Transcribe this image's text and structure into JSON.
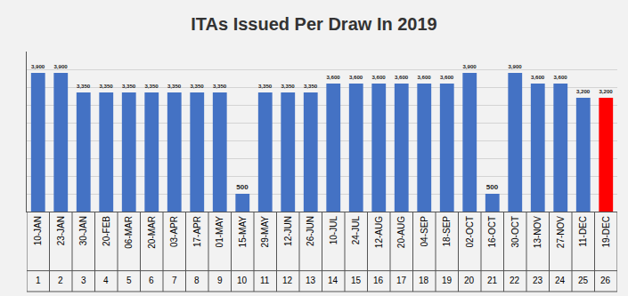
{
  "chart_data": {
    "type": "bar",
    "title": "ITAs Issued Per Draw In 2019",
    "categories": [
      "10-JAN",
      "23-JAN",
      "30-JAN",
      "20-FEB",
      "06-MAR",
      "20-MAR",
      "03-APR",
      "17-APR",
      "01-MAY",
      "15-MAY",
      "29-MAY",
      "12-JUN",
      "26-JUN",
      "10-JUL",
      "24-JUL",
      "12-AUG",
      "20-AUG",
      "04-SEP",
      "18-SEP",
      "02-OCT",
      "16-OCT",
      "30-OCT",
      "13-NOV",
      "27-NOV",
      "11-DEC",
      "19-DEC"
    ],
    "draw_numbers": [
      1,
      2,
      3,
      4,
      5,
      6,
      7,
      8,
      9,
      10,
      11,
      12,
      13,
      14,
      15,
      16,
      17,
      18,
      19,
      20,
      21,
      22,
      23,
      24,
      25,
      26
    ],
    "values": [
      3900,
      3900,
      3350,
      3350,
      3350,
      3350,
      3350,
      3350,
      3350,
      500,
      3350,
      3350,
      3350,
      3600,
      3600,
      3600,
      3600,
      3600,
      3600,
      3900,
      500,
      3900,
      3600,
      3600,
      3200,
      3200
    ],
    "value_labels": [
      "3,900",
      "3,900",
      "3,350",
      "3,350",
      "3,350",
      "3,350",
      "3,350",
      "3,350",
      "3,350",
      "500",
      "3,350",
      "3,350",
      "3,350",
      "3,600",
      "3,600",
      "3,600",
      "3,600",
      "3,600",
      "3,600",
      "3,900",
      "500",
      "3,900",
      "3,600",
      "3,600",
      "3,200",
      "3,200"
    ],
    "colors": [
      "#4472c4",
      "#4472c4",
      "#4472c4",
      "#4472c4",
      "#4472c4",
      "#4472c4",
      "#4472c4",
      "#4472c4",
      "#4472c4",
      "#4472c4",
      "#4472c4",
      "#4472c4",
      "#4472c4",
      "#4472c4",
      "#4472c4",
      "#4472c4",
      "#4472c4",
      "#4472c4",
      "#4472c4",
      "#4472c4",
      "#4472c4",
      "#4472c4",
      "#4472c4",
      "#4472c4",
      "#4472c4",
      "#ff0000"
    ],
    "ylim": [
      0,
      4500
    ],
    "yticks": [
      0,
      500,
      1000,
      1500,
      2000,
      2500,
      3000,
      3500,
      4000,
      4500
    ],
    "grid": true,
    "data_labels": true,
    "tick_labels": "x"
  }
}
